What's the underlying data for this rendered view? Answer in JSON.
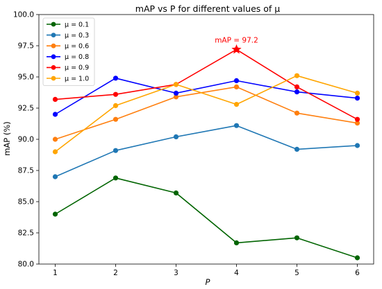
{
  "chart_data": {
    "type": "line",
    "title": "mAP vs P for different values of μ",
    "xlabel": "P",
    "ylabel": "mAP (%)",
    "x": [
      1,
      2,
      3,
      4,
      5,
      6
    ],
    "xticks": [
      "1",
      "2",
      "3",
      "4",
      "5",
      "6"
    ],
    "xlim": [
      0.73,
      6.27
    ],
    "ylim": [
      80.0,
      100.0
    ],
    "yticks": [
      "80.0",
      "82.5",
      "85.0",
      "87.5",
      "90.0",
      "92.5",
      "95.0",
      "97.5",
      "100.0"
    ],
    "grid": false,
    "legend_position": "top-left",
    "series": [
      {
        "name": "μ = 0.1",
        "color": "#006400",
        "values": [
          84.0,
          86.9,
          85.7,
          81.7,
          82.1,
          80.5
        ]
      },
      {
        "name": "μ = 0.3",
        "color": "#1f77b4",
        "values": [
          87.0,
          89.1,
          90.2,
          91.1,
          89.2,
          89.5
        ]
      },
      {
        "name": "μ = 0.6",
        "color": "#ff7f0e",
        "values": [
          90.0,
          91.6,
          93.4,
          94.2,
          92.1,
          91.3
        ]
      },
      {
        "name": "μ = 0.8",
        "color": "#0000ff",
        "values": [
          92.0,
          94.9,
          93.7,
          94.7,
          93.8,
          93.3
        ]
      },
      {
        "name": "μ = 0.9",
        "color": "#ff0000",
        "values": [
          93.2,
          93.6,
          94.4,
          97.2,
          94.2,
          91.6
        ]
      },
      {
        "name": "μ = 1.0",
        "color": "#ffa500",
        "values": [
          89.0,
          92.7,
          94.4,
          92.8,
          95.1,
          93.7
        ]
      }
    ],
    "annotation": {
      "text": "mAP = 97.2",
      "x": 4,
      "y": 97.2,
      "marker": "star",
      "color": "#ff0000"
    }
  }
}
